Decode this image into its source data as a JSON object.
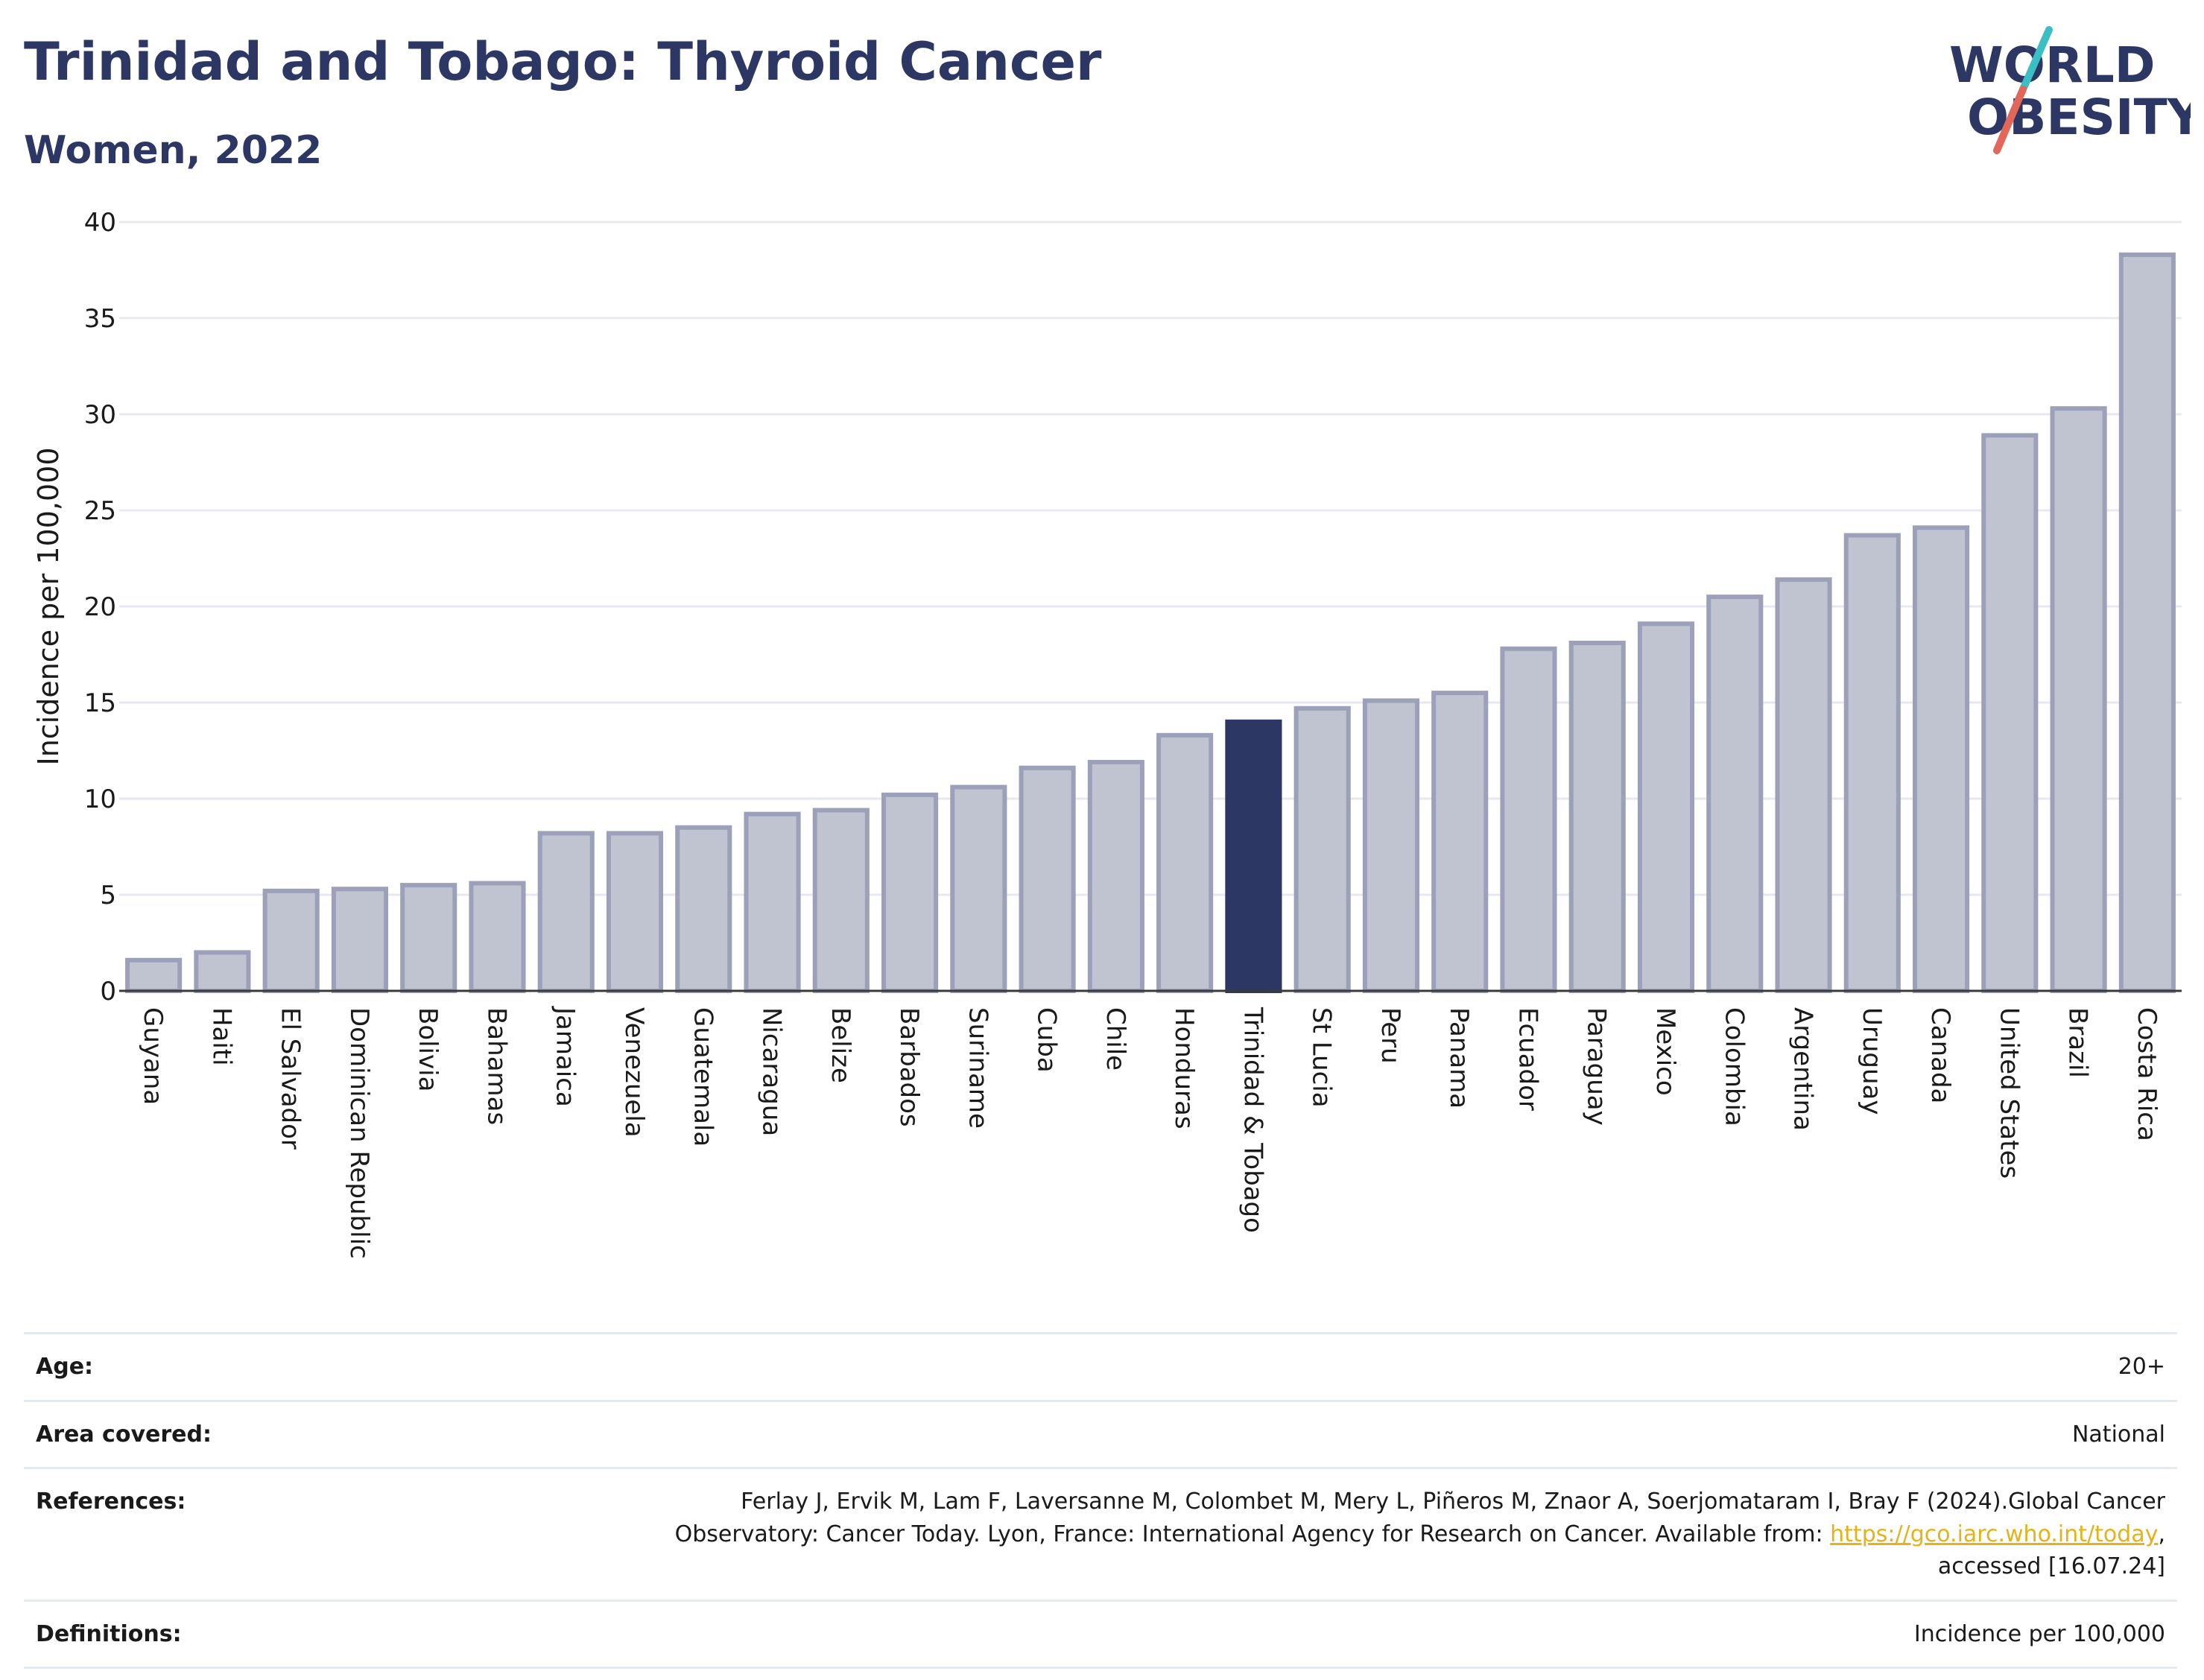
{
  "header": {
    "title": "Trinidad and Tobago: Thyroid Cancer",
    "subtitle": "Women, 2022"
  },
  "logo": {
    "line1": "WORLD",
    "line2": "OBESITY",
    "colors": {
      "text": "#2c3764",
      "slash_top": "#3bbfc4",
      "slash_bottom": "#e2675a"
    }
  },
  "chart_data": {
    "type": "bar",
    "title": "Trinidad and Tobago: Thyroid Cancer",
    "subtitle": "Women, 2022",
    "xlabel": "",
    "ylabel": "Incidence per 100,000",
    "ylim": [
      0,
      40
    ],
    "yticks": [
      0,
      5,
      10,
      15,
      20,
      25,
      30,
      35,
      40
    ],
    "grid": true,
    "highlight": "Trinidad & Tobago",
    "colors": {
      "bar": "#c0c3d0",
      "bar_edge": "#9ca0b8",
      "highlight": "#2c3764"
    },
    "categories": [
      "Guyana",
      "Haiti",
      "El Salvador",
      "Dominican Republic",
      "Bolivia",
      "Bahamas",
      "Jamaica",
      "Venezuela",
      "Guatemala",
      "Nicaragua",
      "Belize",
      "Barbados",
      "Suriname",
      "Cuba",
      "Chile",
      "Honduras",
      "Trinidad & Tobago",
      "St Lucia",
      "Peru",
      "Panama",
      "Ecuador",
      "Paraguay",
      "Mexico",
      "Colombia",
      "Argentina",
      "Uruguay",
      "Canada",
      "United States",
      "Brazil",
      "Costa Rica"
    ],
    "values": [
      1.6,
      2.0,
      5.2,
      5.3,
      5.5,
      5.6,
      8.2,
      8.2,
      8.5,
      9.2,
      9.4,
      10.2,
      10.6,
      11.6,
      11.9,
      13.3,
      14.0,
      14.7,
      15.1,
      15.5,
      17.8,
      18.1,
      19.1,
      20.5,
      21.4,
      23.7,
      24.1,
      28.9,
      30.3,
      38.3
    ]
  },
  "meta": {
    "age": {
      "label": "Age:",
      "value": "20+"
    },
    "area": {
      "label": "Area covered:",
      "value": "National"
    },
    "references": {
      "label": "References:",
      "line1": "Ferlay J, Ervik M, Lam F, Laversanne M, Colombet M, Mery L, Piñeros M, Znaor A, Soerjomataram I, Bray F (2024).Global Cancer",
      "line2_pre": "Observatory: Cancer Today. Lyon, France: International Agency for Research on Cancer. Available from: ",
      "link": "https://gco.iarc.who.int/today",
      "line2_post": ",",
      "line3": "accessed [16.07.24]"
    },
    "definitions": {
      "label": "Definitions:",
      "value": "Incidence per 100,000"
    }
  }
}
